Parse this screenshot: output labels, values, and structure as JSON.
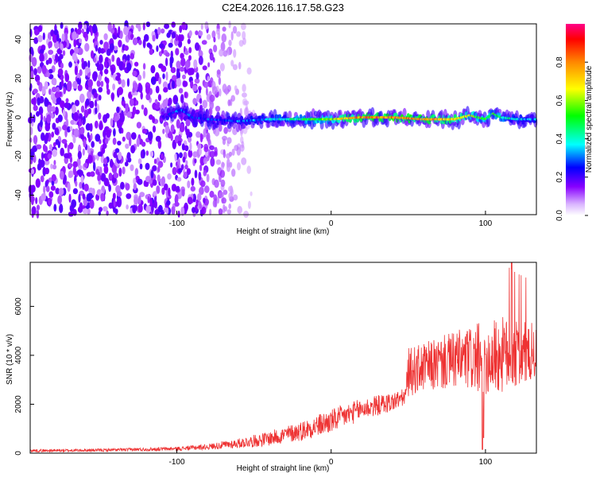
{
  "title": "C2E4.2026.116.17.58.G23",
  "chart_data": [
    {
      "type": "heatmap",
      "title": "C2E4.2026.116.17.58.G23",
      "xlabel": "Height of straight line (km)",
      "ylabel": "Frequency (Hz)",
      "xlim": [
        -195,
        133
      ],
      "ylim": [
        -50,
        48
      ],
      "xticks": [
        -100,
        0,
        100
      ],
      "xtick_labels": [
        "-100",
        "0",
        "100"
      ],
      "yticks": [
        -40,
        -20,
        0,
        20,
        40
      ],
      "ytick_labels": [
        "-40",
        "-20",
        "0",
        "20",
        "40"
      ],
      "colorbar": {
        "label": "Normalized spectral amplitude",
        "range": [
          0,
          1
        ],
        "ticks": [
          0.0,
          0.2,
          0.4,
          0.6,
          0.8
        ],
        "tick_labels": [
          "0.0",
          "0.2",
          "0.4",
          "0.6",
          "0.8"
        ],
        "colormap": [
          "#ffffff",
          "#8800ff",
          "#0000ff",
          "#00ffff",
          "#00ff00",
          "#ffff00",
          "#ff8800",
          "#ff0000",
          "#ff0088"
        ]
      },
      "signal_track": {
        "x": [
          -110,
          -97,
          -90,
          -80,
          -60,
          -40,
          -20,
          0,
          20,
          40,
          60,
          80,
          90,
          95,
          100,
          105,
          110,
          120,
          133
        ],
        "freq": [
          0,
          4,
          0,
          -1,
          -2,
          -1,
          -1,
          -1,
          0,
          0,
          -1,
          -1,
          1,
          0,
          -1,
          2,
          0,
          -1,
          -1
        ],
        "amplitude": [
          0.15,
          0.3,
          0.25,
          0.25,
          0.3,
          0.35,
          0.45,
          0.6,
          0.8,
          0.8,
          0.75,
          0.7,
          0.6,
          0.5,
          0.55,
          0.5,
          0.45,
          0.35,
          0.3
        ]
      },
      "noise_region_end_x": -50
    },
    {
      "type": "line",
      "xlabel": "Height of straight line (km)",
      "ylabel": "SNR (10 * v/v)",
      "xlim": [
        -195,
        133
      ],
      "ylim": [
        0,
        7800
      ],
      "xticks": [
        -100,
        0,
        100
      ],
      "xtick_labels": [
        "-100",
        "0",
        "100"
      ],
      "yticks": [
        0,
        2000,
        4000,
        6000
      ],
      "ytick_labels": [
        "0",
        "2000",
        "4000",
        "6000"
      ],
      "series": [
        {
          "name": "SNR",
          "color": "#ee3333",
          "envelope_x": [
            -195,
            -150,
            -100,
            -80,
            -60,
            -40,
            -20,
            0,
            20,
            40,
            48,
            50,
            60,
            80,
            100,
            110,
            120,
            133
          ],
          "envelope_y": [
            100,
            120,
            180,
            260,
            400,
            600,
            900,
            1300,
            1800,
            2100,
            2300,
            3300,
            3500,
            3800,
            3900,
            4000,
            4000,
            4100
          ],
          "noise_amplitude": [
            60,
            60,
            80,
            120,
            200,
            300,
            400,
            500,
            450,
            400,
            350,
            1000,
            1000,
            1200,
            1500,
            1600,
            1400,
            1200
          ],
          "peak": {
            "x": 117,
            "y": 7800
          },
          "dip": {
            "x": 98,
            "y": 150
          }
        }
      ]
    }
  ]
}
